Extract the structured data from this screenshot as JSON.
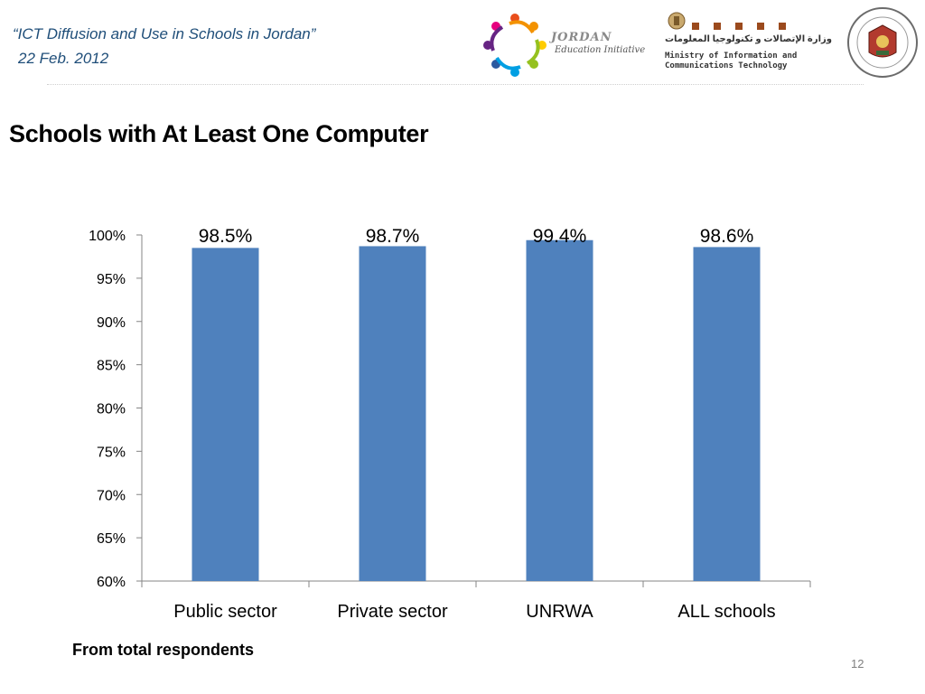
{
  "header": {
    "title": "“ICT  Diffusion and Use in Schools in Jordan”",
    "date": "22 Feb. 2012"
  },
  "logos": {
    "jei": {
      "line1": "JORDAN",
      "line2": "Education Initiative"
    },
    "ministry": {
      "arabic": "وزارة الإتصالات و تكنولوجيا المعلومات",
      "english_line1": "Ministry of Information and",
      "english_line2": "Communications Technology"
    }
  },
  "slide_title": "Schools  with At Least One Computer",
  "chart_data": {
    "type": "bar",
    "categories": [
      "Public sector",
      "Private sector",
      "UNRWA",
      "ALL schools"
    ],
    "values": [
      98.5,
      98.7,
      99.4,
      98.6
    ],
    "data_labels": [
      "98.5%",
      "98.7%",
      "99.4%",
      "98.6%"
    ],
    "ylim": [
      60,
      100
    ],
    "yticks": [
      60,
      65,
      70,
      75,
      80,
      85,
      90,
      95,
      100
    ],
    "ytick_labels": [
      "60%",
      "65%",
      "70%",
      "75%",
      "80%",
      "85%",
      "90%",
      "95%",
      "100%"
    ],
    "bar_color": "#4f81bd",
    "grid": false,
    "legend": "none"
  },
  "footnote": "From total respondents",
  "page_number": "12"
}
